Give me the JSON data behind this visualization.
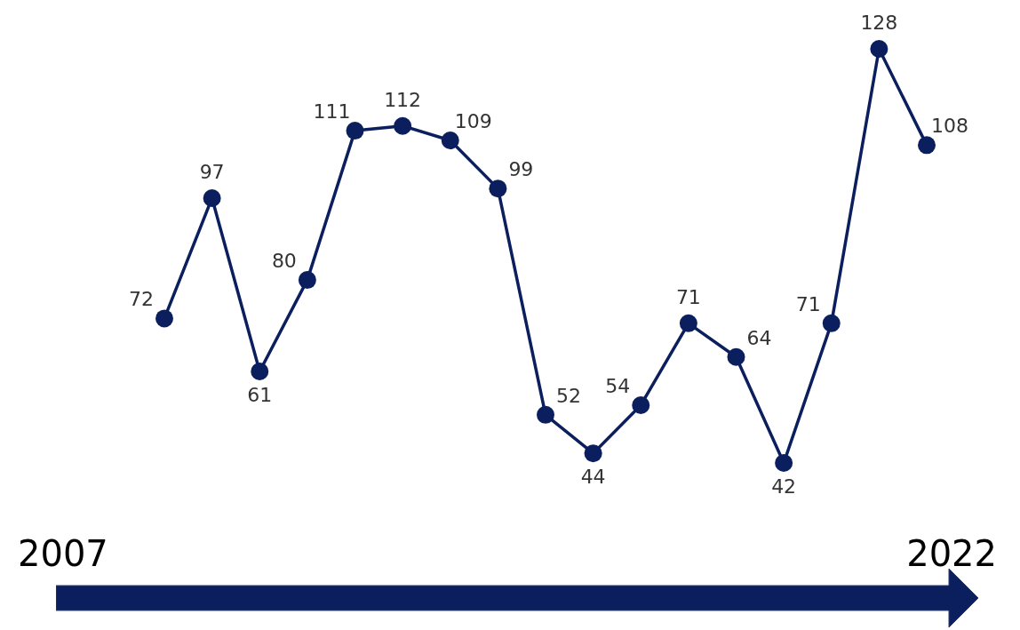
{
  "chart_data": {
    "type": "line",
    "categories": [
      null,
      null,
      null,
      null,
      null,
      null,
      null,
      null,
      null,
      null,
      null,
      null,
      null,
      null,
      null,
      null,
      null
    ],
    "series": [
      {
        "color": "#0b1f5e",
        "values": [
          72,
          97,
          61,
          80,
          111,
          112,
          109,
          99,
          52,
          44,
          54,
          71,
          64,
          42,
          71,
          128,
          108
        ]
      }
    ],
    "data_labels": true,
    "marker": "circle",
    "line_style": "solid",
    "annotations": [
      "2007",
      "2022"
    ]
  }
}
